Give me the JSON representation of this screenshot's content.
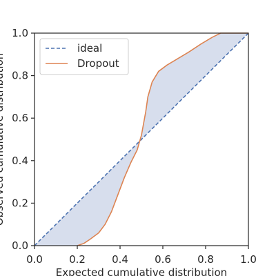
{
  "chart_data": {
    "type": "line",
    "title": "",
    "xlabel": "Expected cumulative distribution",
    "ylabel": "Observed cumulative distribution",
    "xlim": [
      0.0,
      1.0
    ],
    "ylim": [
      0.0,
      1.0
    ],
    "xticks": [
      "0.0",
      "0.2",
      "0.4",
      "0.6",
      "0.8",
      "1.0"
    ],
    "yticks": [
      "0.0",
      "0.2",
      "0.4",
      "0.6",
      "0.8",
      "1.0"
    ],
    "grid": false,
    "legend_position": "top-left",
    "fill_between": true,
    "colors": {
      "ideal": "#4c72b0",
      "dropout": "#dd8452",
      "fill": "#d7deed",
      "axes": "#262626"
    },
    "series": [
      {
        "name": "ideal",
        "style": "dashed",
        "x": [
          0.0,
          1.0
        ],
        "y": [
          0.0,
          1.0
        ]
      },
      {
        "name": "Dropout",
        "style": "solid",
        "x": [
          0.2,
          0.23,
          0.26,
          0.3,
          0.33,
          0.36,
          0.39,
          0.42,
          0.45,
          0.48,
          0.5,
          0.52,
          0.53,
          0.55,
          0.58,
          0.62,
          0.67,
          0.72,
          0.78,
          0.83,
          0.87,
          1.0
        ],
        "y": [
          0.0,
          0.01,
          0.03,
          0.06,
          0.1,
          0.16,
          0.24,
          0.32,
          0.39,
          0.45,
          0.52,
          0.63,
          0.7,
          0.77,
          0.82,
          0.85,
          0.88,
          0.91,
          0.95,
          0.98,
          1.0,
          1.0
        ]
      }
    ]
  }
}
